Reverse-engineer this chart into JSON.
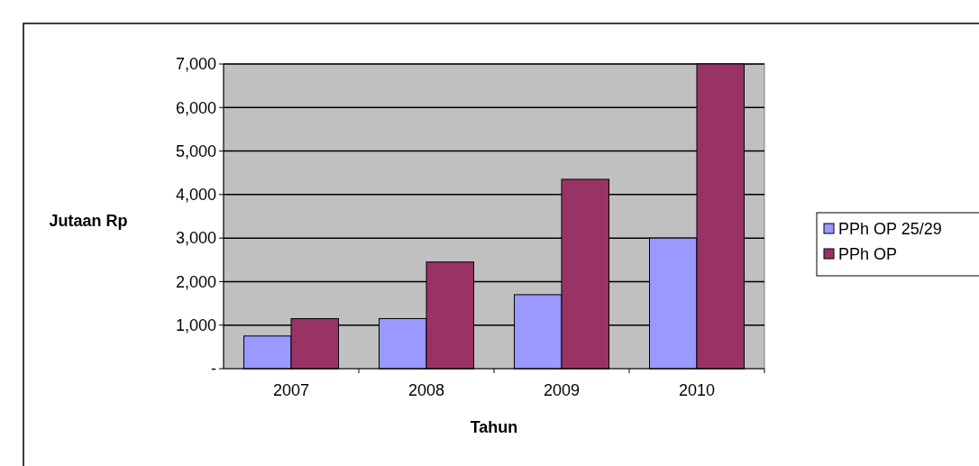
{
  "chart_data": {
    "type": "bar",
    "xlabel": "Tahun",
    "ylabel": "Jutaan Rp",
    "categories": [
      "2007",
      "2008",
      "2009",
      "2010"
    ],
    "series": [
      {
        "name": "PPh OP 25/29",
        "color": "#9999ff",
        "values": [
          750,
          1150,
          1700,
          3000
        ]
      },
      {
        "name": "PPh OP",
        "color": "#993366",
        "values": [
          1150,
          2450,
          4350,
          7000
        ]
      }
    ],
    "ylim": [
      0,
      7000
    ],
    "yticks": [
      {
        "value": 0,
        "label": "-"
      },
      {
        "value": 1000,
        "label": "1,000"
      },
      {
        "value": 2000,
        "label": "2,000"
      },
      {
        "value": 3000,
        "label": "3,000"
      },
      {
        "value": 4000,
        "label": "4,000"
      },
      {
        "value": 5000,
        "label": "5,000"
      },
      {
        "value": 6000,
        "label": "6,000"
      },
      {
        "value": 7000,
        "label": "7,000"
      }
    ],
    "grid": "y",
    "legend": "right"
  }
}
